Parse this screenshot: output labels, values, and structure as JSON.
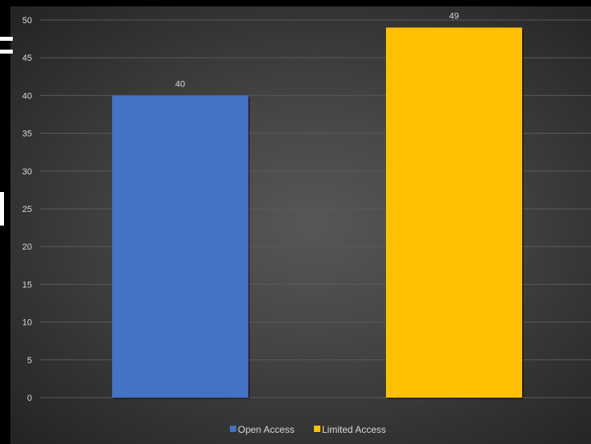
{
  "chart_data": {
    "type": "bar",
    "title": "",
    "xlabel": "",
    "ylabel": "",
    "categories": [
      "Open Access",
      "Limited Access"
    ],
    "values": [
      40,
      49
    ],
    "colors": [
      "#4472C4",
      "#FFC000"
    ],
    "ylim": [
      0,
      50
    ],
    "yticks": [
      0,
      5,
      10,
      15,
      20,
      25,
      30,
      35,
      40,
      45,
      50
    ],
    "grid": true,
    "data_labels": true,
    "legend": {
      "position": "bottom",
      "entries": [
        "Open Access",
        "Limited Access"
      ]
    },
    "background": "#404040",
    "text_color": "#d9d9d9",
    "gridline_color": "#5a5a5a"
  }
}
